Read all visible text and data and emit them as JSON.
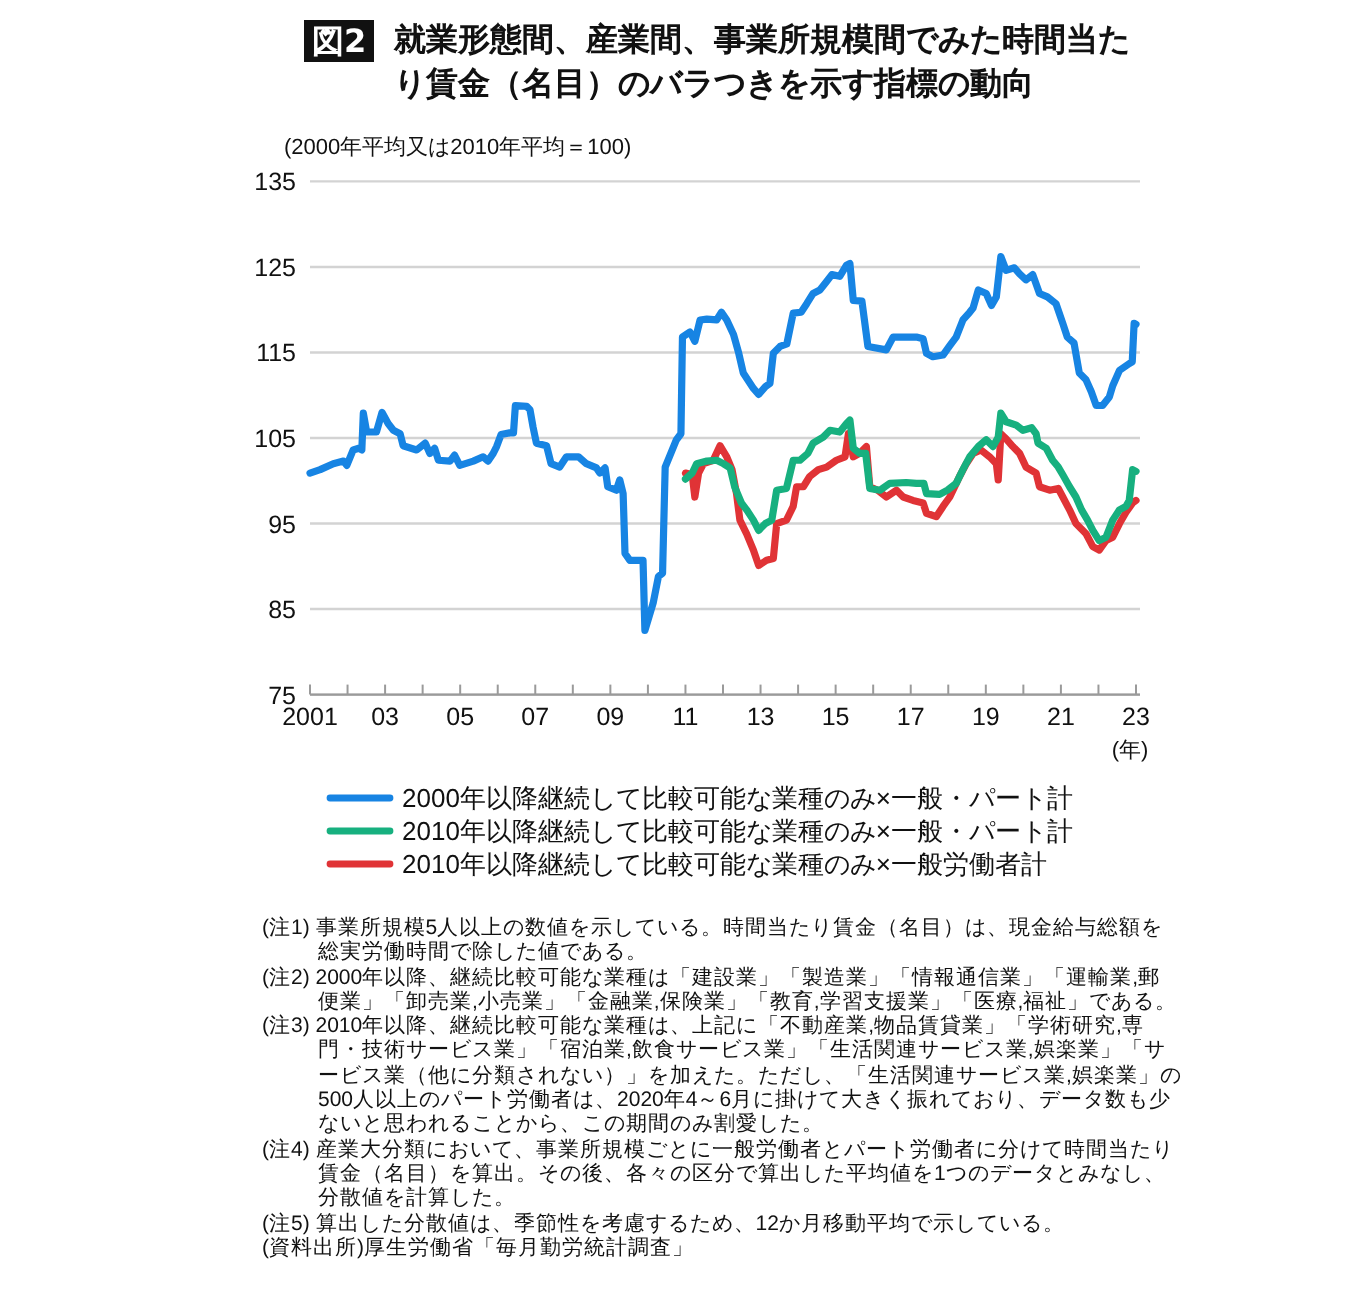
{
  "chart_data": {
    "type": "line",
    "title": "図2 就業形態間、産業間、事業所規模間でみた時間当たり賃金（名目）のバラつきを示す指標の動向",
    "ylabel": "(2000年平均又は2010年平均＝100)",
    "xlabel": "(年)",
    "xlim": [
      2001,
      2023
    ],
    "ylim": [
      75,
      135
    ],
    "yticks": [
      75,
      85,
      95,
      105,
      115,
      125,
      135
    ],
    "xticks": [
      {
        "value": 2001,
        "label": "2001"
      },
      {
        "value": 2002,
        "label": null
      },
      {
        "value": 2003,
        "label": "03"
      },
      {
        "value": 2004,
        "label": null
      },
      {
        "value": 2005,
        "label": "05"
      },
      {
        "value": 2006,
        "label": null
      },
      {
        "value": 2007,
        "label": "07"
      },
      {
        "value": 2008,
        "label": null
      },
      {
        "value": 2009,
        "label": "09"
      },
      {
        "value": 2010,
        "label": null
      },
      {
        "value": 2011,
        "label": "11"
      },
      {
        "value": 2012,
        "label": null
      },
      {
        "value": 2013,
        "label": "13"
      },
      {
        "value": 2014,
        "label": null
      },
      {
        "value": 2015,
        "label": "15"
      },
      {
        "value": 2016,
        "label": null
      },
      {
        "value": 2017,
        "label": "17"
      },
      {
        "value": 2018,
        "label": null
      },
      {
        "value": 2019,
        "label": "19"
      },
      {
        "value": 2020,
        "label": null
      },
      {
        "value": 2021,
        "label": "21"
      },
      {
        "value": 2022,
        "label": null
      },
      {
        "value": 2023,
        "label": "23"
      }
    ],
    "grid": "y",
    "legend": "bottom",
    "series": [
      {
        "name": "2000年以降継続して比較可能な業種のみ×一般・パート計",
        "color": "#1784e3",
        "x": [
          2001.0,
          2001.27,
          2001.62,
          2001.89,
          2001.98,
          2002.15,
          2002.3,
          2002.38,
          2002.42,
          2002.51,
          2002.77,
          2002.92,
          2003.08,
          2003.22,
          2003.4,
          2003.48,
          2003.84,
          2004.07,
          2004.19,
          2004.32,
          2004.42,
          2004.73,
          2004.85,
          2004.99,
          2005.35,
          2005.61,
          2005.74,
          2005.88,
          2005.97,
          2006.09,
          2006.32,
          2006.42,
          2006.47,
          2006.77,
          2006.86,
          2006.94,
          2007.03,
          2007.3,
          2007.42,
          2007.65,
          2007.83,
          2008.15,
          2008.36,
          2008.63,
          2008.72,
          2008.86,
          2008.93,
          2009.16,
          2009.25,
          2009.34,
          2009.39,
          2009.52,
          2009.87,
          2009.92,
          2010.14,
          2010.28,
          2010.39,
          2010.46,
          2010.76,
          2010.88,
          2010.92,
          2011.12,
          2011.25,
          2011.39,
          2011.57,
          2011.83,
          2011.96,
          2012.1,
          2012.28,
          2012.42,
          2012.54,
          2012.81,
          2012.95,
          2013.13,
          2013.25,
          2013.34,
          2013.52,
          2013.7,
          2013.87,
          2014.08,
          2014.23,
          2014.4,
          2014.58,
          2014.76,
          2014.9,
          2015.11,
          2015.29,
          2015.38,
          2015.47,
          2015.7,
          2015.86,
          2016.35,
          2016.53,
          2016.71,
          2017.15,
          2017.33,
          2017.42,
          2017.59,
          2017.86,
          2018.04,
          2018.21,
          2018.39,
          2018.57,
          2018.66,
          2018.8,
          2019.01,
          2019.15,
          2019.28,
          2019.4,
          2019.54,
          2019.76,
          2019.9,
          2020.07,
          2020.25,
          2020.43,
          2020.64,
          2020.87,
          2021.05,
          2021.17,
          2021.35,
          2021.49,
          2021.67,
          2021.81,
          2021.94,
          2022.11,
          2022.29,
          2022.38,
          2022.56,
          2022.82,
          2022.9,
          2022.95,
          2023.0
        ],
        "values": [
          100.9,
          101.3,
          102.0,
          102.3,
          101.8,
          103.6,
          103.8,
          103.6,
          107.9,
          105.7,
          105.7,
          108.0,
          106.7,
          105.9,
          105.5,
          104.1,
          103.6,
          104.4,
          103.2,
          103.8,
          102.4,
          102.3,
          103.0,
          101.8,
          102.3,
          102.8,
          102.3,
          103.2,
          104.0,
          105.4,
          105.6,
          105.6,
          108.8,
          108.7,
          108.3,
          106.3,
          104.4,
          104.1,
          102.0,
          101.6,
          102.8,
          102.8,
          102.0,
          101.5,
          100.9,
          101.5,
          99.3,
          98.9,
          100.1,
          98.5,
          91.5,
          90.7,
          90.7,
          82.5,
          85.7,
          88.8,
          89.2,
          101.6,
          104.8,
          105.5,
          116.8,
          117.4,
          116.3,
          118.8,
          118.9,
          118.8,
          119.7,
          118.8,
          117.1,
          114.9,
          112.6,
          110.8,
          110.1,
          111.0,
          111.4,
          114.9,
          115.7,
          116.0,
          119.6,
          119.7,
          120.7,
          121.9,
          122.3,
          123.3,
          124.1,
          123.9,
          125.2,
          125.4,
          121.1,
          121.0,
          115.7,
          115.3,
          116.8,
          116.8,
          116.8,
          116.6,
          114.9,
          114.5,
          114.7,
          115.8,
          116.8,
          118.8,
          119.7,
          120.2,
          122.3,
          121.9,
          120.5,
          121.5,
          126.2,
          124.6,
          124.9,
          124.2,
          123.5,
          124.1,
          121.9,
          121.5,
          120.7,
          118.4,
          116.8,
          116.1,
          112.6,
          111.8,
          110.4,
          108.8,
          108.8,
          109.8,
          111.1,
          112.9,
          113.7,
          113.9,
          118.4,
          118.3
        ]
      },
      {
        "name": "2010年以降継続して比較可能な業種のみ×一般・パート計",
        "color": "#17b07f",
        "x": [
          2011.0,
          2011.18,
          2011.3,
          2011.57,
          2011.83,
          2012.01,
          2012.19,
          2012.31,
          2012.49,
          2012.63,
          2012.81,
          2012.95,
          2013.13,
          2013.3,
          2013.43,
          2013.69,
          2013.87,
          2014.05,
          2014.26,
          2014.4,
          2014.67,
          2014.85,
          2015.11,
          2015.29,
          2015.38,
          2015.47,
          2015.64,
          2015.8,
          2015.91,
          2016.18,
          2016.44,
          2016.88,
          2017.15,
          2017.35,
          2017.42,
          2017.77,
          2017.98,
          2018.21,
          2018.39,
          2018.57,
          2018.8,
          2019.01,
          2019.19,
          2019.33,
          2019.4,
          2019.54,
          2019.81,
          2019.99,
          2020.22,
          2020.34,
          2020.39,
          2020.61,
          2020.78,
          2020.93,
          2021.05,
          2021.23,
          2021.4,
          2021.55,
          2021.71,
          2021.85,
          2022.02,
          2022.2,
          2022.38,
          2022.56,
          2022.73,
          2022.82,
          2022.91,
          2023.0
        ],
        "values": [
          100.2,
          100.9,
          102.0,
          102.3,
          102.4,
          102.0,
          101.5,
          99.3,
          97.4,
          96.6,
          95.4,
          94.2,
          95.0,
          95.4,
          98.9,
          99.1,
          102.4,
          102.4,
          103.2,
          104.4,
          105.1,
          105.9,
          105.7,
          106.7,
          107.1,
          103.8,
          103.2,
          103.2,
          99.1,
          98.9,
          99.7,
          99.8,
          99.7,
          99.7,
          98.5,
          98.4,
          98.9,
          99.7,
          101.3,
          102.8,
          104.0,
          104.8,
          104.0,
          105.1,
          107.9,
          106.9,
          106.5,
          105.9,
          106.2,
          105.5,
          104.4,
          103.8,
          102.4,
          101.6,
          100.7,
          99.3,
          98.1,
          96.6,
          95.4,
          94.2,
          93.0,
          93.4,
          95.4,
          96.6,
          97.0,
          97.7,
          101.3,
          101.1
        ]
      },
      {
        "name": "2010年以降継続して比較可能な業種のみ×一般労働者計",
        "color": "#e03336",
        "x": [
          2011.0,
          2011.18,
          2011.25,
          2011.35,
          2011.48,
          2011.74,
          2011.92,
          2012.1,
          2012.24,
          2012.36,
          2012.45,
          2012.63,
          2012.81,
          2012.95,
          2013.16,
          2013.34,
          2013.43,
          2013.69,
          2013.87,
          2013.96,
          2014.14,
          2014.31,
          2014.54,
          2014.76,
          2015.02,
          2015.25,
          2015.34,
          2015.47,
          2015.64,
          2015.82,
          2015.91,
          2016.12,
          2016.35,
          2016.62,
          2016.8,
          2017.06,
          2017.33,
          2017.42,
          2017.68,
          2017.86,
          2018.04,
          2018.3,
          2018.48,
          2018.66,
          2018.87,
          2019.1,
          2019.28,
          2019.33,
          2019.4,
          2019.54,
          2019.72,
          2019.9,
          2020.07,
          2020.34,
          2020.43,
          2020.7,
          2020.93,
          2021.05,
          2021.23,
          2021.4,
          2021.67,
          2021.85,
          2022.02,
          2022.2,
          2022.38,
          2022.56,
          2022.73,
          2022.91,
          2023.0
        ],
        "values": [
          100.9,
          100.7,
          98.1,
          100.9,
          102.0,
          102.4,
          104.1,
          102.8,
          101.3,
          98.5,
          95.4,
          93.8,
          91.9,
          90.1,
          90.7,
          90.9,
          95.0,
          95.4,
          97.0,
          99.3,
          99.3,
          100.5,
          101.3,
          101.6,
          102.4,
          102.8,
          105.5,
          102.8,
          103.2,
          104.0,
          99.3,
          98.9,
          98.1,
          98.9,
          98.1,
          97.7,
          97.4,
          96.2,
          95.8,
          97.0,
          98.1,
          100.5,
          102.0,
          103.2,
          103.6,
          102.8,
          102.0,
          100.1,
          105.5,
          104.9,
          104.0,
          103.2,
          101.6,
          100.9,
          99.3,
          98.9,
          99.1,
          98.1,
          96.6,
          95.0,
          93.8,
          92.3,
          91.9,
          93.0,
          93.4,
          95.0,
          96.3,
          97.4,
          97.7
        ]
      }
    ],
    "annotations": [
      "(注1) 事業所規模5人以上の数値を示している。時間当たり賃金（名目）は、現金給与総額を総実労働時間で除した値である。",
      "(注2) 2000年以降、継続比較可能な業種は「建設業」「製造業」「情報通信業」「運輸業,郵便業」「卸売業,小売業」「金融業,保険業」「教育,学習支援業」「医療,福祉」である。",
      "(注3) 2010年以降、継続比較可能な業種は、上記に「不動産業,物品賃貸業」「学術研究,専門・技術サービス業」「宿泊業,飲食サービス業」「生活関連サービス業,娯楽業」「サービス業（他に分類されない）」を加えた。ただし、「生活関連サービス業,娯楽業」の500人以上のパート労働者は、2020年4～6月に掛けて大きく振れており、データ数も少ないと思われることから、この期間のみ割愛した。",
      "(注4) 産業大分類において、事業所規模ごとに一般労働者とパート労働者に分けて時間当たり賃金（名目）を算出。その後、各々の区分で算出した平均値を1つのデータとみなし、分散値を計算した。",
      "(注5) 算出した分散値は、季節性を考慮するため、12か月移動平均で示している。",
      "(資料出所)厚生労働省「毎月勤労統計調査」"
    ]
  }
}
